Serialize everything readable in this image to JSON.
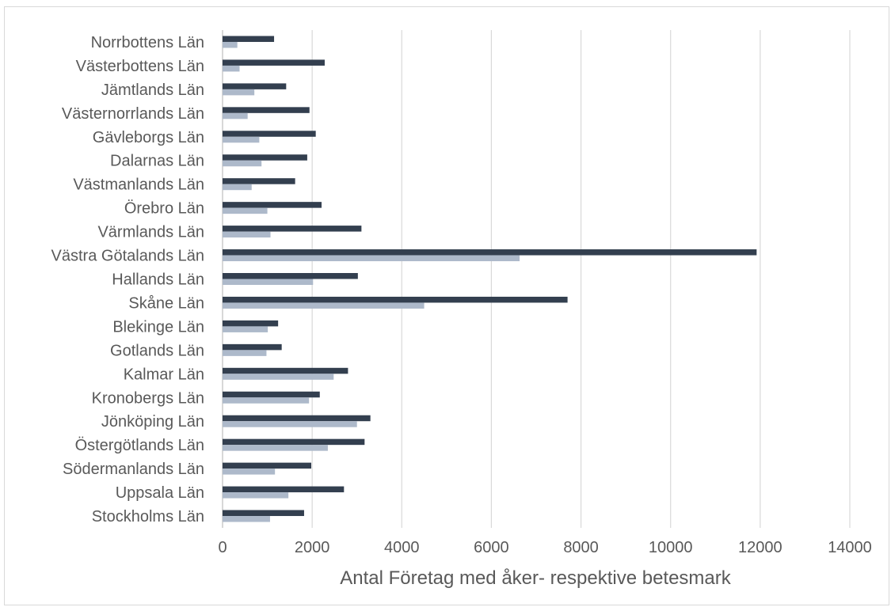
{
  "chart_data": {
    "type": "bar",
    "orientation": "horizontal",
    "title": "",
    "xlabel": "Antal Företag med åker- respektive betesmark",
    "ylabel": "",
    "xlim": [
      0,
      14000
    ],
    "xticks": [
      0,
      2000,
      4000,
      6000,
      8000,
      10000,
      12000,
      14000
    ],
    "grid": true,
    "legend": "none",
    "categories": [
      "Norrbottens Län",
      "Västerbottens Län",
      "Jämtlands Län",
      "Västernorrlands Län",
      "Gävleborgs Län",
      "Dalarnas Län",
      "Västmanlands Län",
      "Örebro Län",
      "Värmlands Län",
      "Västra Götalands Län",
      "Hallands Län",
      "Skåne Län",
      "Blekinge Län",
      "Gotlands Län",
      "Kalmar Län",
      "Kronobergs Län",
      "Jönköping Län",
      "Östergötlands Län",
      "Södermanlands Län",
      "Uppsala Län",
      "Stockholms Län"
    ],
    "series": [
      {
        "color": "#333f4f",
        "values": [
          1150,
          2280,
          1420,
          1940,
          2080,
          1890,
          1620,
          2210,
          3100,
          11920,
          3020,
          7700,
          1240,
          1320,
          2800,
          2170,
          3300,
          3170,
          1980,
          2710,
          1820
        ]
      },
      {
        "color": "#adb9ca",
        "values": [
          330,
          380,
          710,
          560,
          820,
          870,
          650,
          1000,
          1070,
          6630,
          2020,
          4500,
          1010,
          980,
          2480,
          1930,
          3000,
          2350,
          1170,
          1470,
          1060
        ]
      }
    ]
  }
}
